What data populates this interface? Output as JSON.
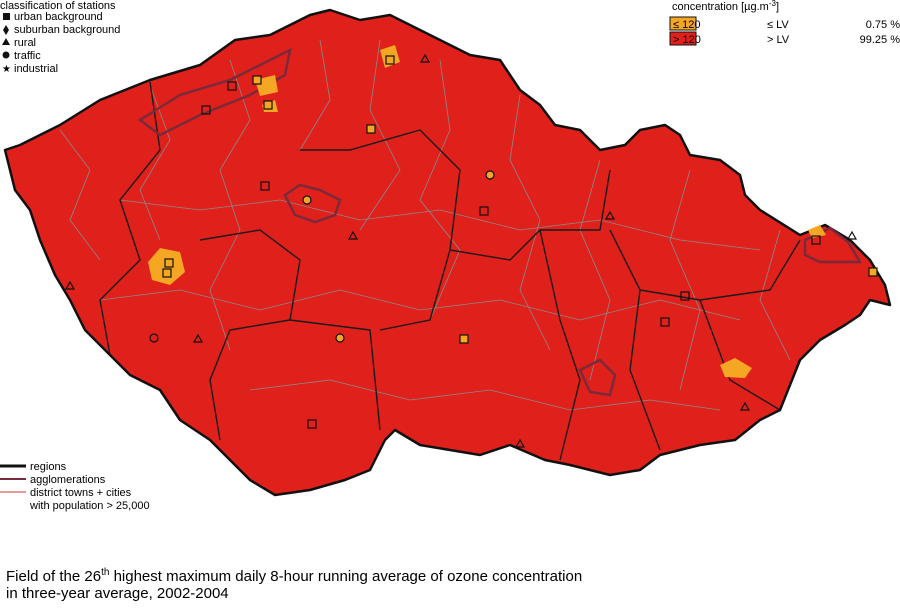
{
  "station_legend": {
    "title": "classification of stations",
    "items": [
      "urban background",
      "suburban background",
      "rural",
      "traffic",
      "industrial"
    ]
  },
  "concentration_legend": {
    "title": [
      "concentration [µg.m",
      "-3",
      "]"
    ],
    "rows": [
      {
        "range": "≤ 120",
        "limit": "≤ LV",
        "share": "0.75 %"
      },
      {
        "range": "> 120",
        "limit": "> LV",
        "share": "99.25 %"
      }
    ]
  },
  "line_legend": [
    "regions",
    "agglomerations",
    "district towns + cities",
    "with population > 25,000"
  ],
  "caption": {
    "line1": [
      "Field of the 26",
      "th",
      " highest maximum daily 8-hour running average of ozone concentration"
    ],
    "line2": "in three-year average, 2002-2004"
  }
}
